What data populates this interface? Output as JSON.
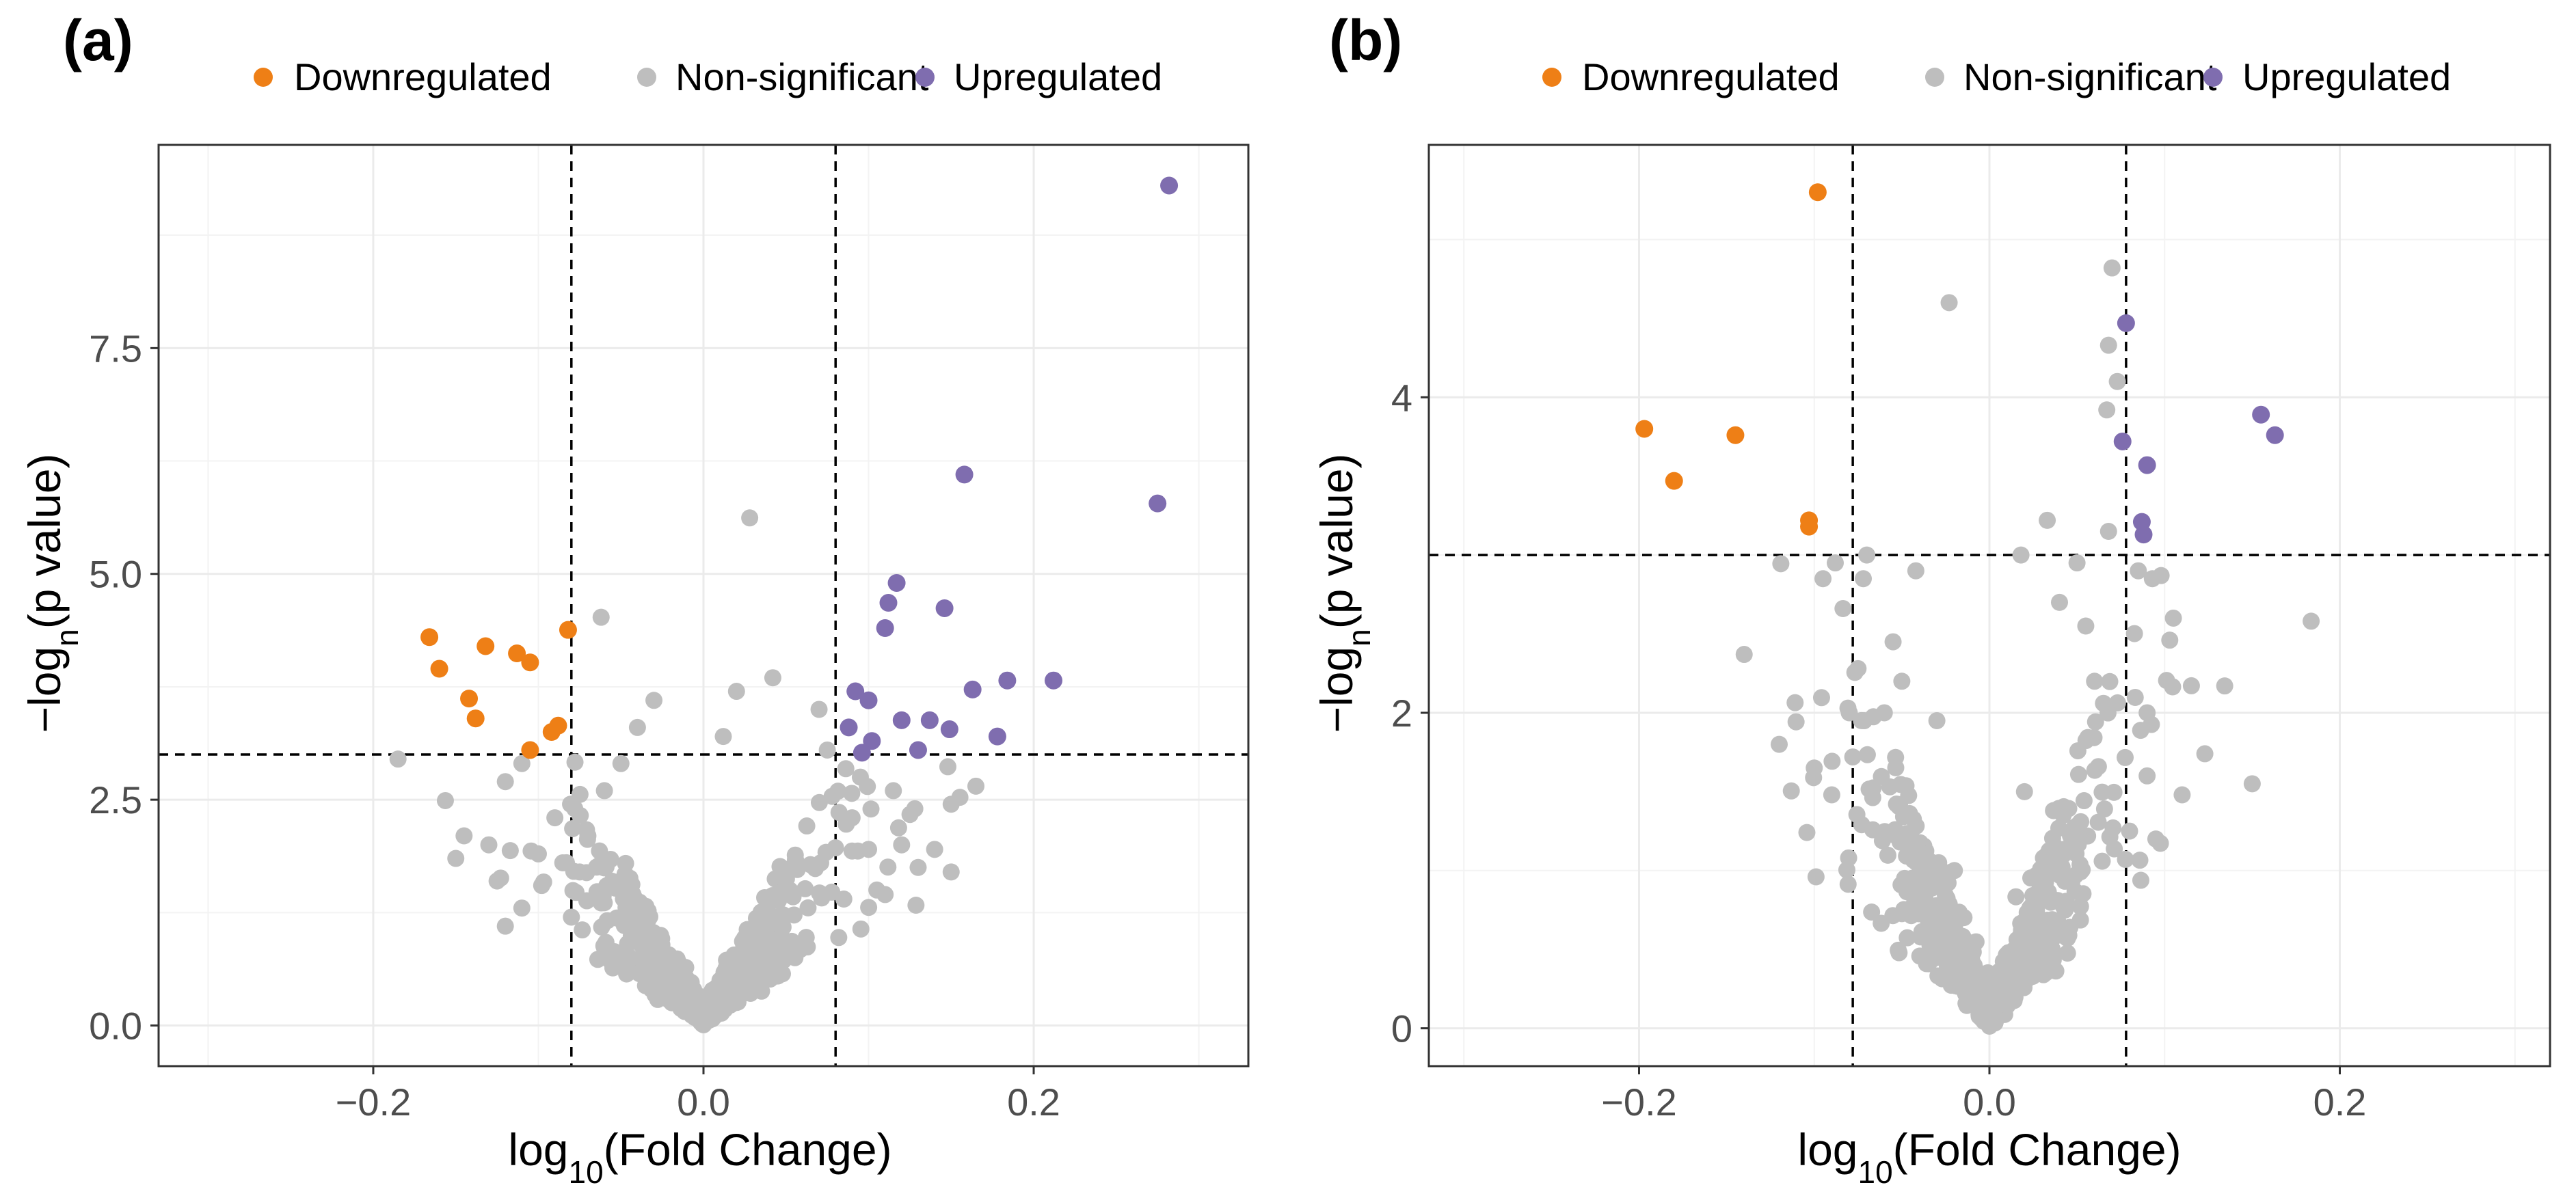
{
  "colors": {
    "downregulated": "#EE7F16",
    "nonsignificant": "#BEBEBE",
    "upregulated": "#7F6DAF"
  },
  "legend": {
    "down": "Downregulated",
    "ns": "Non-significant",
    "up": "Upregulated"
  },
  "chart_data": [
    {
      "panel": "(a)",
      "type": "scatter",
      "title": "",
      "xlabel": {
        "main": "log",
        "sub": "10",
        "rest": "(Fold Change)"
      },
      "ylabel": {
        "main": "−log",
        "sub": "n",
        "rest": "(p value)"
      },
      "xlim": [
        -0.33,
        0.33
      ],
      "ylim": [
        -0.45,
        9.75
      ],
      "xticks": [
        -0.2,
        0.0,
        0.2
      ],
      "xtick_labels": [
        "−0.2",
        "0.0",
        "0.2"
      ],
      "yticks": [
        0.0,
        2.5,
        5.0,
        7.5
      ],
      "ytick_labels": [
        "0.0",
        "2.5",
        "5.0",
        "7.5"
      ],
      "thresholds": {
        "x": [
          -0.08,
          0.08
        ],
        "y": 3.0
      },
      "downregulated": [
        [
          -0.166,
          4.3
        ],
        [
          -0.16,
          3.95
        ],
        [
          -0.142,
          3.62
        ],
        [
          -0.132,
          4.2
        ],
        [
          -0.138,
          3.4
        ],
        [
          -0.113,
          4.12
        ],
        [
          -0.105,
          4.02
        ],
        [
          -0.105,
          3.05
        ],
        [
          -0.092,
          3.25
        ],
        [
          -0.088,
          3.32
        ],
        [
          -0.082,
          4.38
        ]
      ],
      "upregulated": [
        [
          0.282,
          9.3
        ],
        [
          0.275,
          5.78
        ],
        [
          0.158,
          6.1
        ],
        [
          0.117,
          4.9
        ],
        [
          0.146,
          4.62
        ],
        [
          0.112,
          4.68
        ],
        [
          0.11,
          4.4
        ],
        [
          0.092,
          3.7
        ],
        [
          0.1,
          3.6
        ],
        [
          0.088,
          3.3
        ],
        [
          0.102,
          3.15
        ],
        [
          0.096,
          3.02
        ],
        [
          0.12,
          3.38
        ],
        [
          0.137,
          3.38
        ],
        [
          0.149,
          3.28
        ],
        [
          0.13,
          3.05
        ],
        [
          0.163,
          3.72
        ],
        [
          0.184,
          3.82
        ],
        [
          0.212,
          3.82
        ],
        [
          0.178,
          3.2
        ]
      ],
      "ns_seed": 7,
      "ns_count": 700,
      "ns_extra": [
        [
          0.028,
          5.62
        ],
        [
          -0.062,
          4.52
        ],
        [
          -0.185,
          2.95
        ],
        [
          -0.03,
          3.6
        ],
        [
          -0.04,
          3.3
        ],
        [
          0.02,
          3.7
        ],
        [
          0.042,
          3.85
        ],
        [
          0.07,
          3.5
        ],
        [
          0.012,
          3.2
        ],
        [
          -0.12,
          2.7
        ],
        [
          -0.13,
          2.0
        ],
        [
          -0.15,
          1.85
        ],
        [
          -0.145,
          2.1
        ],
        [
          -0.12,
          1.1
        ],
        [
          -0.11,
          1.3
        ],
        [
          -0.125,
          1.6
        ],
        [
          -0.098,
          1.55
        ],
        [
          -0.1,
          1.9
        ],
        [
          -0.09,
          2.3
        ],
        [
          -0.11,
          2.9
        ],
        [
          -0.07,
          2.1
        ],
        [
          -0.075,
          1.7
        ],
        [
          0.09,
          2.3
        ],
        [
          0.1,
          1.95
        ],
        [
          0.115,
          2.6
        ],
        [
          0.12,
          2.0
        ],
        [
          0.128,
          2.4
        ],
        [
          0.15,
          2.45
        ],
        [
          0.165,
          2.65
        ],
        [
          0.14,
          1.95
        ],
        [
          0.105,
          1.5
        ],
        [
          0.13,
          1.75
        ],
        [
          0.11,
          1.45
        ],
        [
          0.15,
          1.7
        ],
        [
          -0.08,
          1.2
        ],
        [
          0.085,
          1.4
        ],
        [
          0.095,
          2.75
        ],
        [
          0.075,
          3.05
        ],
        [
          -0.06,
          2.6
        ],
        [
          -0.05,
          2.9
        ]
      ]
    },
    {
      "panel": "(b)",
      "type": "scatter",
      "title": "",
      "xlabel": {
        "main": "log",
        "sub": "10",
        "rest": "(Fold Change)"
      },
      "ylabel": {
        "main": "−log",
        "sub": "n",
        "rest": "(p value)"
      },
      "xlim": [
        -0.32,
        0.32
      ],
      "ylim": [
        -0.24,
        5.6
      ],
      "xticks": [
        -0.2,
        0.0,
        0.2
      ],
      "xtick_labels": [
        "−0.2",
        "0.0",
        "0.2"
      ],
      "yticks": [
        0,
        2,
        4
      ],
      "ytick_labels": [
        "0",
        "2",
        "4"
      ],
      "thresholds": {
        "x": [
          -0.078,
          0.078
        ],
        "y": 3.0
      },
      "downregulated": [
        [
          -0.098,
          5.3
        ],
        [
          -0.197,
          3.8
        ],
        [
          -0.18,
          3.47
        ],
        [
          -0.145,
          3.76
        ],
        [
          -0.103,
          3.22
        ],
        [
          -0.103,
          3.18
        ]
      ],
      "upregulated": [
        [
          0.078,
          4.47
        ],
        [
          0.076,
          3.72
        ],
        [
          0.09,
          3.57
        ],
        [
          0.087,
          3.21
        ],
        [
          0.088,
          3.13
        ],
        [
          0.155,
          3.89
        ],
        [
          0.163,
          3.76
        ]
      ],
      "ns_seed": 13,
      "ns_count": 620,
      "ns_extra": [
        [
          0.07,
          4.82
        ],
        [
          -0.023,
          4.6
        ],
        [
          0.068,
          4.33
        ],
        [
          0.073,
          4.1
        ],
        [
          0.067,
          3.92
        ],
        [
          0.033,
          3.22
        ],
        [
          0.068,
          3.15
        ],
        [
          -0.07,
          3.0
        ],
        [
          -0.072,
          2.85
        ],
        [
          -0.095,
          2.85
        ],
        [
          -0.042,
          2.9
        ],
        [
          -0.088,
          2.95
        ],
        [
          0.085,
          2.9
        ],
        [
          0.093,
          2.85
        ],
        [
          0.098,
          2.87
        ],
        [
          0.105,
          2.6
        ],
        [
          0.15,
          1.55
        ],
        [
          0.11,
          1.48
        ],
        [
          -0.14,
          2.37
        ],
        [
          -0.12,
          1.8
        ],
        [
          -0.1,
          1.65
        ],
        [
          -0.09,
          1.48
        ],
        [
          -0.08,
          2.0
        ],
        [
          -0.075,
          2.28
        ],
        [
          -0.078,
          1.72
        ],
        [
          -0.03,
          1.95
        ],
        [
          0.09,
          2.0
        ],
        [
          0.09,
          1.6
        ],
        [
          0.095,
          1.2
        ],
        [
          0.08,
          1.25
        ],
        [
          0.04,
          2.7
        ],
        [
          0.05,
          2.95
        ],
        [
          0.055,
          2.55
        ],
        [
          -0.055,
          2.45
        ],
        [
          -0.06,
          2.0
        ],
        [
          0.02,
          1.5
        ],
        [
          0.018,
          3.0
        ],
        [
          -0.05,
          2.2
        ],
        [
          0.06,
          2.2
        ],
        [
          -0.02,
          1.0
        ]
      ]
    }
  ]
}
